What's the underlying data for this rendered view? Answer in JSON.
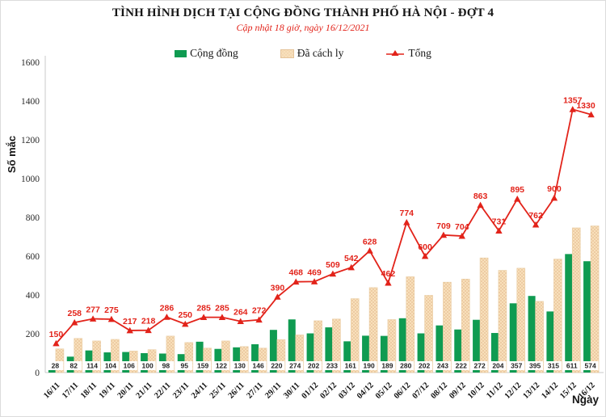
{
  "chart_data": {
    "type": "bar+line",
    "title": "TÌNH HÌNH DỊCH TẠI CỘNG ĐỒNG THÀNH PHỐ HÀ NỘI - ĐỢT 4",
    "subtitle": "Cập nhật 18 giờ, ngày 16/12/2021",
    "ylabel": "Số mắc",
    "xlabel": "Ngày",
    "ylim": [
      0,
      1600
    ],
    "ytick_step": 200,
    "grid": false,
    "legend_position": "top",
    "categories": [
      "16/11",
      "17/11",
      "18/11",
      "19/11",
      "20/11",
      "21/11",
      "22/11",
      "23/11",
      "24/11",
      "25/11",
      "26/11",
      "27/11",
      "29/11",
      "30/11",
      "01/12",
      "02/12",
      "03/12",
      "04/12",
      "05/12",
      "06/12",
      "07/12",
      "08/12",
      "09/12",
      "10/12",
      "11/12",
      "12/12",
      "13/12",
      "14/12",
      "15/12",
      "16/12"
    ],
    "series": [
      {
        "name": "Cộng đồng",
        "type": "bar",
        "color": "#0f9b51",
        "labels_shown": true,
        "values": [
          28,
          82,
          114,
          104,
          106,
          100,
          98,
          95,
          159,
          122,
          130,
          146,
          220,
          274,
          202,
          233,
          161,
          190,
          189,
          280,
          202,
          243,
          222,
          272,
          204,
          357,
          395,
          315,
          611,
          574
        ]
      },
      {
        "name": "Đã cách ly",
        "type": "bar",
        "color": "#f8e0bb",
        "pattern_dot_color": "#e5bd92",
        "labels_shown": false,
        "values": [
          122,
          176,
          163,
          171,
          111,
          118,
          188,
          155,
          126,
          163,
          134,
          126,
          170,
          194,
          267,
          276,
          381,
          438,
          273,
          494,
          398,
          466,
          482,
          591,
          527,
          538,
          367,
          585,
          746,
          756
        ]
      },
      {
        "name": "Tổng",
        "type": "line",
        "color": "#e2231a",
        "marker": "triangle-up",
        "labels_shown": true,
        "values": [
          150,
          258,
          277,
          275,
          217,
          218,
          286,
          250,
          285,
          285,
          264,
          272,
          390,
          468,
          469,
          509,
          542,
          628,
          462,
          774,
          600,
          709,
          704,
          863,
          731,
          895,
          762,
          900,
          1357,
          1330
        ]
      }
    ]
  },
  "colors": {
    "title_text": "#161616",
    "subtitle_red": "#e2231a",
    "community_green": "#0f9b51",
    "quarantine_tan": "#f8e0bb",
    "quarantine_dot": "#e5bd92",
    "total_red": "#e2231a",
    "axis_gray": "#c9c9c9",
    "background": "#ffffff"
  }
}
